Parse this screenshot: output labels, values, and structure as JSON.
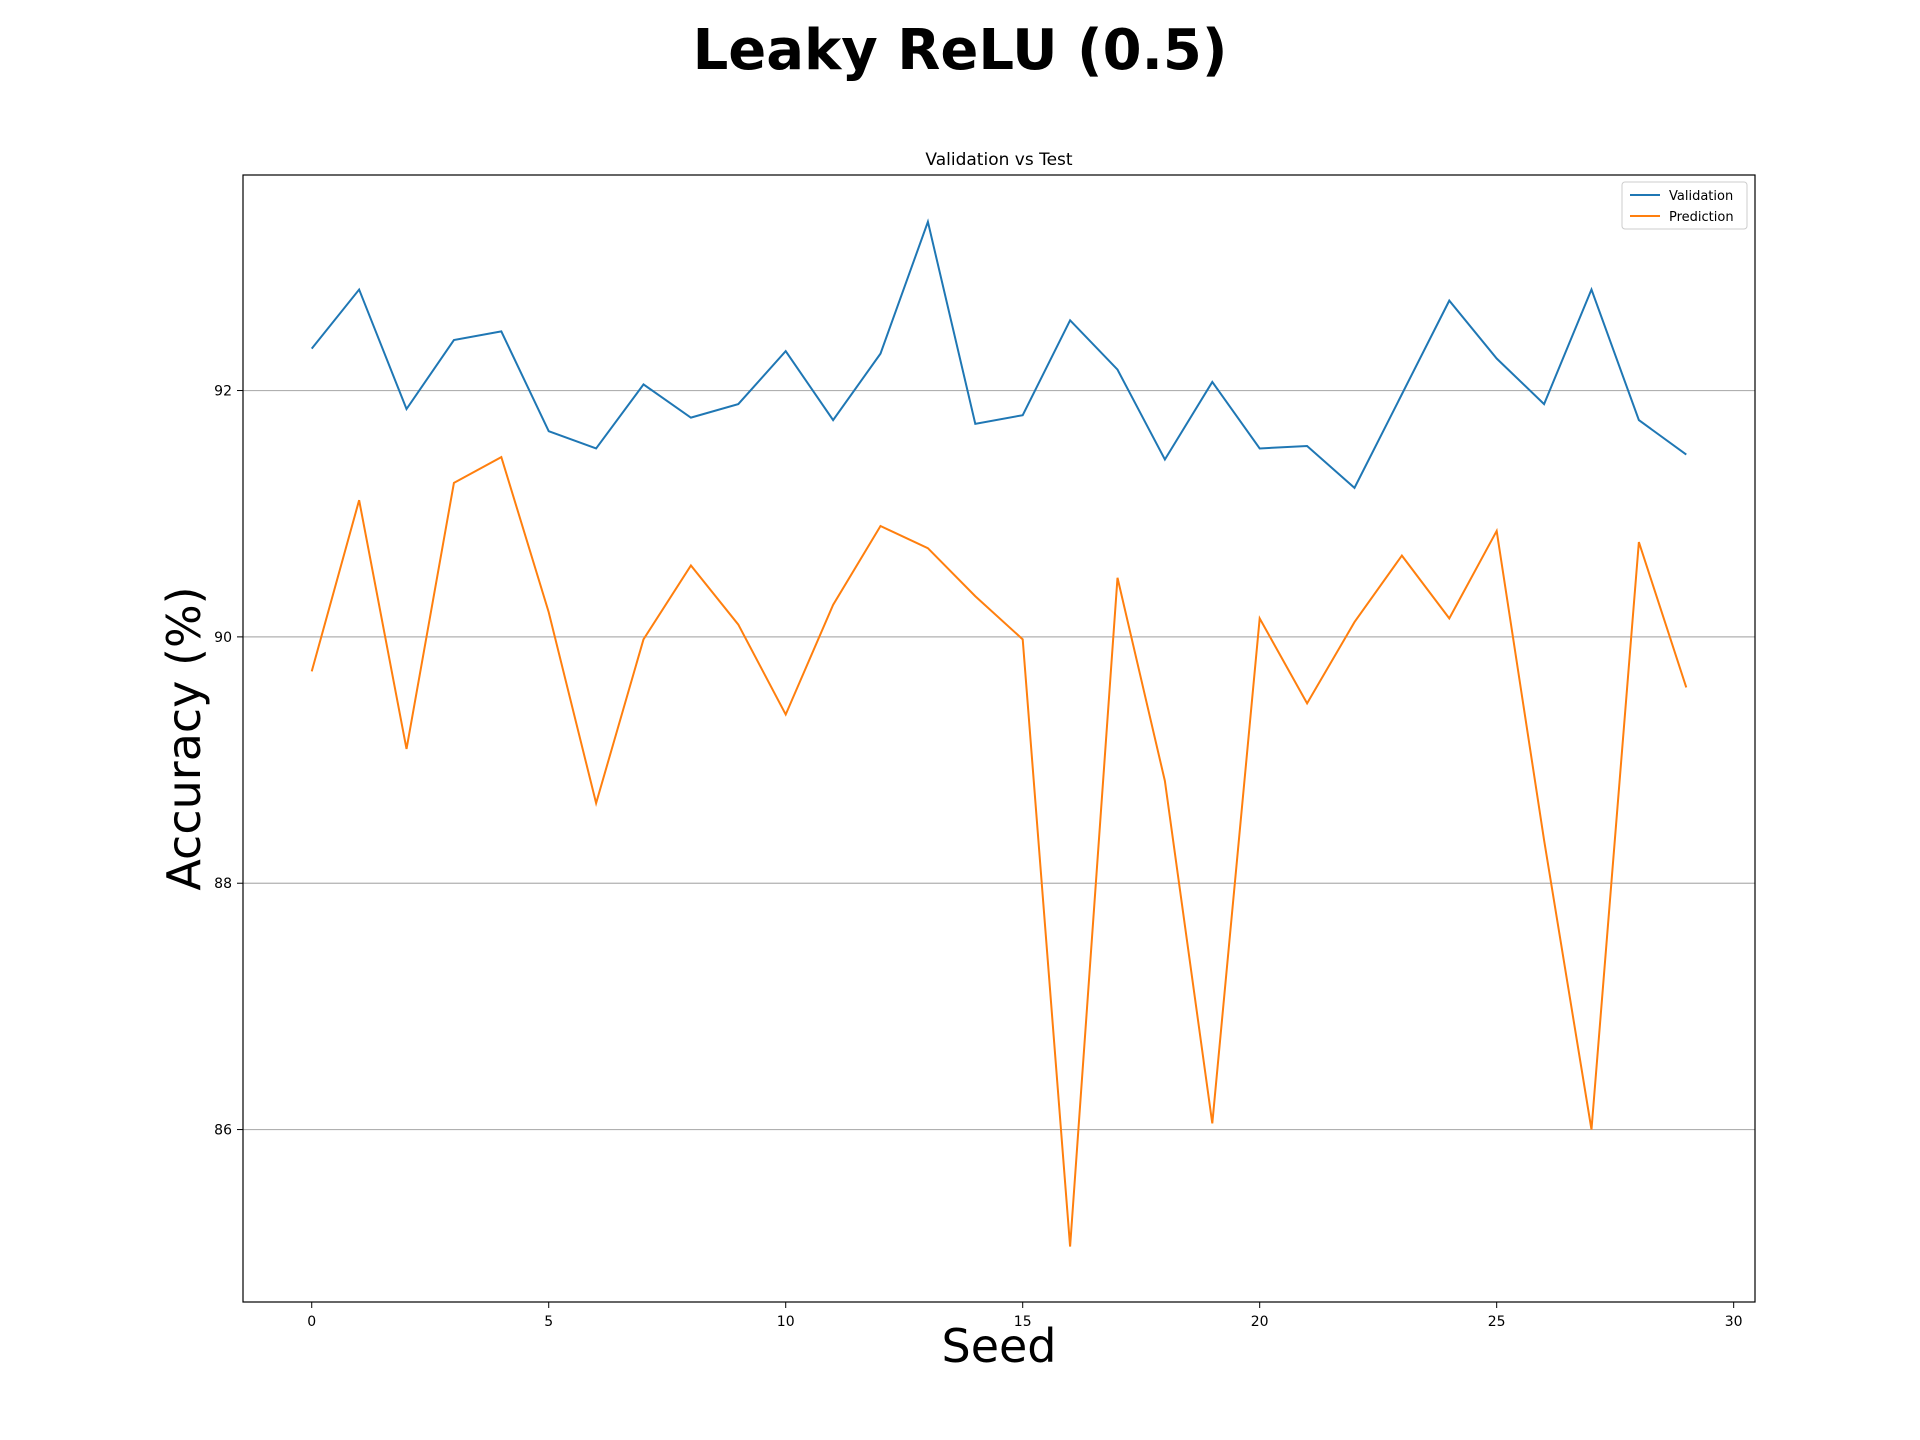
{
  "figure": {
    "title": "Leaky ReLU (0.5)"
  },
  "chart_data": {
    "type": "line",
    "title": "Validation vs Test",
    "xlabel": "Seed",
    "ylabel": "Accuracy (%)",
    "xlim": [
      -1.45,
      30.45
    ],
    "ylim": [
      84.6,
      93.75
    ],
    "xticks": [
      0,
      5,
      10,
      15,
      20,
      25,
      30
    ],
    "yticks": [
      86,
      88,
      90,
      92
    ],
    "grid": "y",
    "legend": "top-right",
    "x": [
      0,
      1,
      2,
      3,
      4,
      5,
      6,
      7,
      8,
      9,
      10,
      11,
      12,
      13,
      14,
      15,
      16,
      17,
      18,
      19,
      20,
      21,
      22,
      23,
      24,
      25,
      26,
      27,
      28,
      29
    ],
    "series": [
      {
        "name": "Validation",
        "color": "#1f77b4",
        "values": [
          92.34,
          92.82,
          91.85,
          92.41,
          92.48,
          91.67,
          91.53,
          92.05,
          91.78,
          91.89,
          92.32,
          91.76,
          92.3,
          93.37,
          91.73,
          91.8,
          92.57,
          92.17,
          91.44,
          92.07,
          91.53,
          91.55,
          91.21,
          91.97,
          92.73,
          92.26,
          91.89,
          92.82,
          91.76,
          91.48
        ]
      },
      {
        "name": "Prediction",
        "color": "#ff7f0e",
        "values": [
          89.72,
          91.11,
          89.09,
          91.25,
          91.46,
          90.2,
          88.65,
          89.98,
          90.58,
          90.1,
          89.37,
          90.26,
          90.9,
          90.72,
          90.33,
          89.98,
          85.05,
          90.48,
          88.83,
          86.05,
          90.15,
          89.46,
          90.12,
          90.66,
          90.15,
          90.86,
          88.35,
          86.0,
          90.77,
          89.59
        ]
      }
    ]
  }
}
